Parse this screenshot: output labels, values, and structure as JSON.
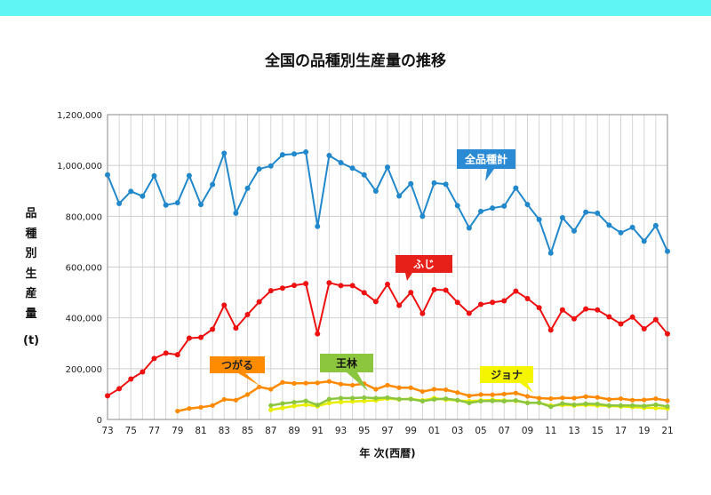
{
  "colors": {
    "header_bar": "#5ff5f5"
  },
  "chart_data": {
    "type": "line",
    "title": "全国の品種別生産量の推移",
    "ylabel_chars": [
      "品",
      "種",
      "別",
      "生",
      "産",
      "量",
      "(t)"
    ],
    "xlabel": "年 次(西暦)",
    "ylim": [
      0,
      1200000
    ],
    "yticks": [
      0,
      200000,
      400000,
      600000,
      800000,
      1000000,
      1200000
    ],
    "ytick_labels": [
      "0",
      "200,000",
      "400,000",
      "600,000",
      "800,000",
      "1,000,000",
      "1,200,000"
    ],
    "xlim": [
      1973,
      2021
    ],
    "xtick_years": [
      1973,
      1975,
      1977,
      1979,
      1981,
      1983,
      1985,
      1987,
      1989,
      1991,
      1993,
      1995,
      1997,
      1999,
      2001,
      2003,
      2005,
      2007,
      2009,
      2011,
      2013,
      2015,
      2017,
      2019,
      2021
    ],
    "xtick_labels": [
      "73",
      "75",
      "77",
      "79",
      "81",
      "83",
      "85",
      "87",
      "89",
      "91",
      "93",
      "95",
      "97",
      "99",
      "01",
      "03",
      "05",
      "07",
      "09",
      "11",
      "13",
      "15",
      "17",
      "19",
      "21"
    ],
    "grid": true,
    "series": [
      {
        "name": "全品種計",
        "color": "#2288cc",
        "x": [
          1973,
          1974,
          1975,
          1976,
          1977,
          1978,
          1979,
          1980,
          1981,
          1982,
          1983,
          1984,
          1985,
          1986,
          1987,
          1988,
          1989,
          1990,
          1991,
          1992,
          1993,
          1994,
          1995,
          1996,
          1997,
          1998,
          1999,
          2000,
          2001,
          2002,
          2003,
          2004,
          2005,
          2006,
          2007,
          2008,
          2009,
          2010,
          2011,
          2012,
          2013,
          2014,
          2015,
          2016,
          2017,
          2018,
          2019,
          2020,
          2021
        ],
        "values": [
          963000,
          850000,
          898000,
          879000,
          959000,
          844000,
          853000,
          960000,
          846000,
          925000,
          1048000,
          812000,
          910000,
          986000,
          998000,
          1042000,
          1045000,
          1053000,
          760000,
          1039000,
          1011000,
          989000,
          963000,
          899000,
          993000,
          880000,
          928000,
          800000,
          931000,
          926000,
          842000,
          754000,
          819000,
          832000,
          840000,
          911000,
          846000,
          787000,
          655000,
          794000,
          742000,
          816000,
          812000,
          765000,
          735000,
          756000,
          702000,
          763000,
          662000
        ]
      },
      {
        "name": "ふじ",
        "color": "#ee1111",
        "x": [
          1973,
          1974,
          1975,
          1976,
          1977,
          1978,
          1979,
          1980,
          1981,
          1982,
          1983,
          1984,
          1985,
          1986,
          1987,
          1988,
          1989,
          1990,
          1991,
          1992,
          1993,
          1994,
          1995,
          1996,
          1997,
          1998,
          1999,
          2000,
          2001,
          2002,
          2003,
          2004,
          2005,
          2006,
          2007,
          2008,
          2009,
          2010,
          2011,
          2012,
          2013,
          2014,
          2015,
          2016,
          2017,
          2018,
          2019,
          2020,
          2021
        ],
        "values": [
          93000,
          121000,
          159000,
          187000,
          240000,
          261000,
          255000,
          320000,
          323000,
          355000,
          450000,
          360000,
          413000,
          463000,
          507000,
          517000,
          528000,
          535000,
          337000,
          538000,
          527000,
          527000,
          499000,
          464000,
          532000,
          449000,
          500000,
          417000,
          511000,
          509000,
          461000,
          418000,
          453000,
          461000,
          467000,
          505000,
          476000,
          440000,
          352000,
          431000,
          396000,
          435000,
          431000,
          404000,
          376000,
          403000,
          357000,
          393000,
          337000
        ]
      },
      {
        "name": "つがる",
        "color": "#ff8a00",
        "x": [
          1979,
          1980,
          1981,
          1982,
          1983,
          1984,
          1985,
          1986,
          1987,
          1988,
          1989,
          1990,
          1991,
          1992,
          1993,
          1994,
          1995,
          1996,
          1997,
          1998,
          1999,
          2000,
          2001,
          2002,
          2003,
          2004,
          2005,
          2006,
          2007,
          2008,
          2009,
          2010,
          2011,
          2012,
          2013,
          2014,
          2015,
          2016,
          2017,
          2018,
          2019,
          2020,
          2021
        ],
        "values": [
          33000,
          43000,
          48000,
          55000,
          79000,
          76000,
          98000,
          128000,
          119000,
          146000,
          142000,
          143000,
          144000,
          150000,
          139000,
          135000,
          141000,
          119000,
          135000,
          125000,
          125000,
          110000,
          119000,
          117000,
          106000,
          93000,
          98000,
          97000,
          100000,
          104000,
          91000,
          84000,
          82000,
          85000,
          84000,
          90000,
          87000,
          79000,
          82000,
          76000,
          77000,
          82000,
          74000
        ]
      },
      {
        "name": "王林",
        "color": "#8cc63e",
        "x": [
          1987,
          1988,
          1989,
          1990,
          1991,
          1992,
          1993,
          1994,
          1995,
          1996,
          1997,
          1998,
          1999,
          2000,
          2001,
          2002,
          2003,
          2004,
          2005,
          2006,
          2007,
          2008,
          2009,
          2010,
          2011,
          2012,
          2013,
          2014,
          2015,
          2016,
          2017,
          2018,
          2019,
          2020,
          2021
        ],
        "values": [
          55000,
          63000,
          68000,
          73000,
          57000,
          80000,
          84000,
          84000,
          86000,
          84000,
          86000,
          80000,
          80000,
          72000,
          79000,
          82000,
          76000,
          65000,
          72000,
          73000,
          72000,
          75000,
          65000,
          66000,
          50000,
          63000,
          58000,
          62000,
          61000,
          55000,
          55000,
          55000,
          53000,
          58000,
          51000
        ]
      },
      {
        "name": "ジョナ",
        "color": "#e8ee00",
        "x": [
          1987,
          1988,
          1989,
          1990,
          1991,
          1992,
          1993,
          1994,
          1995,
          1996,
          1997,
          1998,
          1999,
          2000,
          2001,
          2002,
          2003,
          2004,
          2005,
          2006,
          2007,
          2008,
          2009,
          2010,
          2011,
          2012,
          2013,
          2014,
          2015,
          2016,
          2017,
          2018,
          2019,
          2020,
          2021
        ],
        "values": [
          38000,
          45000,
          53000,
          58000,
          52000,
          65000,
          69000,
          71000,
          73000,
          75000,
          82000,
          79000,
          81000,
          75000,
          84000,
          78000,
          75000,
          72000,
          75000,
          77000,
          75000,
          73000,
          66000,
          65000,
          55000,
          57000,
          55000,
          57000,
          55000,
          53000,
          51000,
          49000,
          46000,
          45000,
          43000
        ]
      }
    ]
  },
  "legend_callouts": {
    "total": "全品種計",
    "fuji": "ふじ",
    "tsugaru": "つがる",
    "orin": "王林",
    "jona": "ジョナ"
  }
}
